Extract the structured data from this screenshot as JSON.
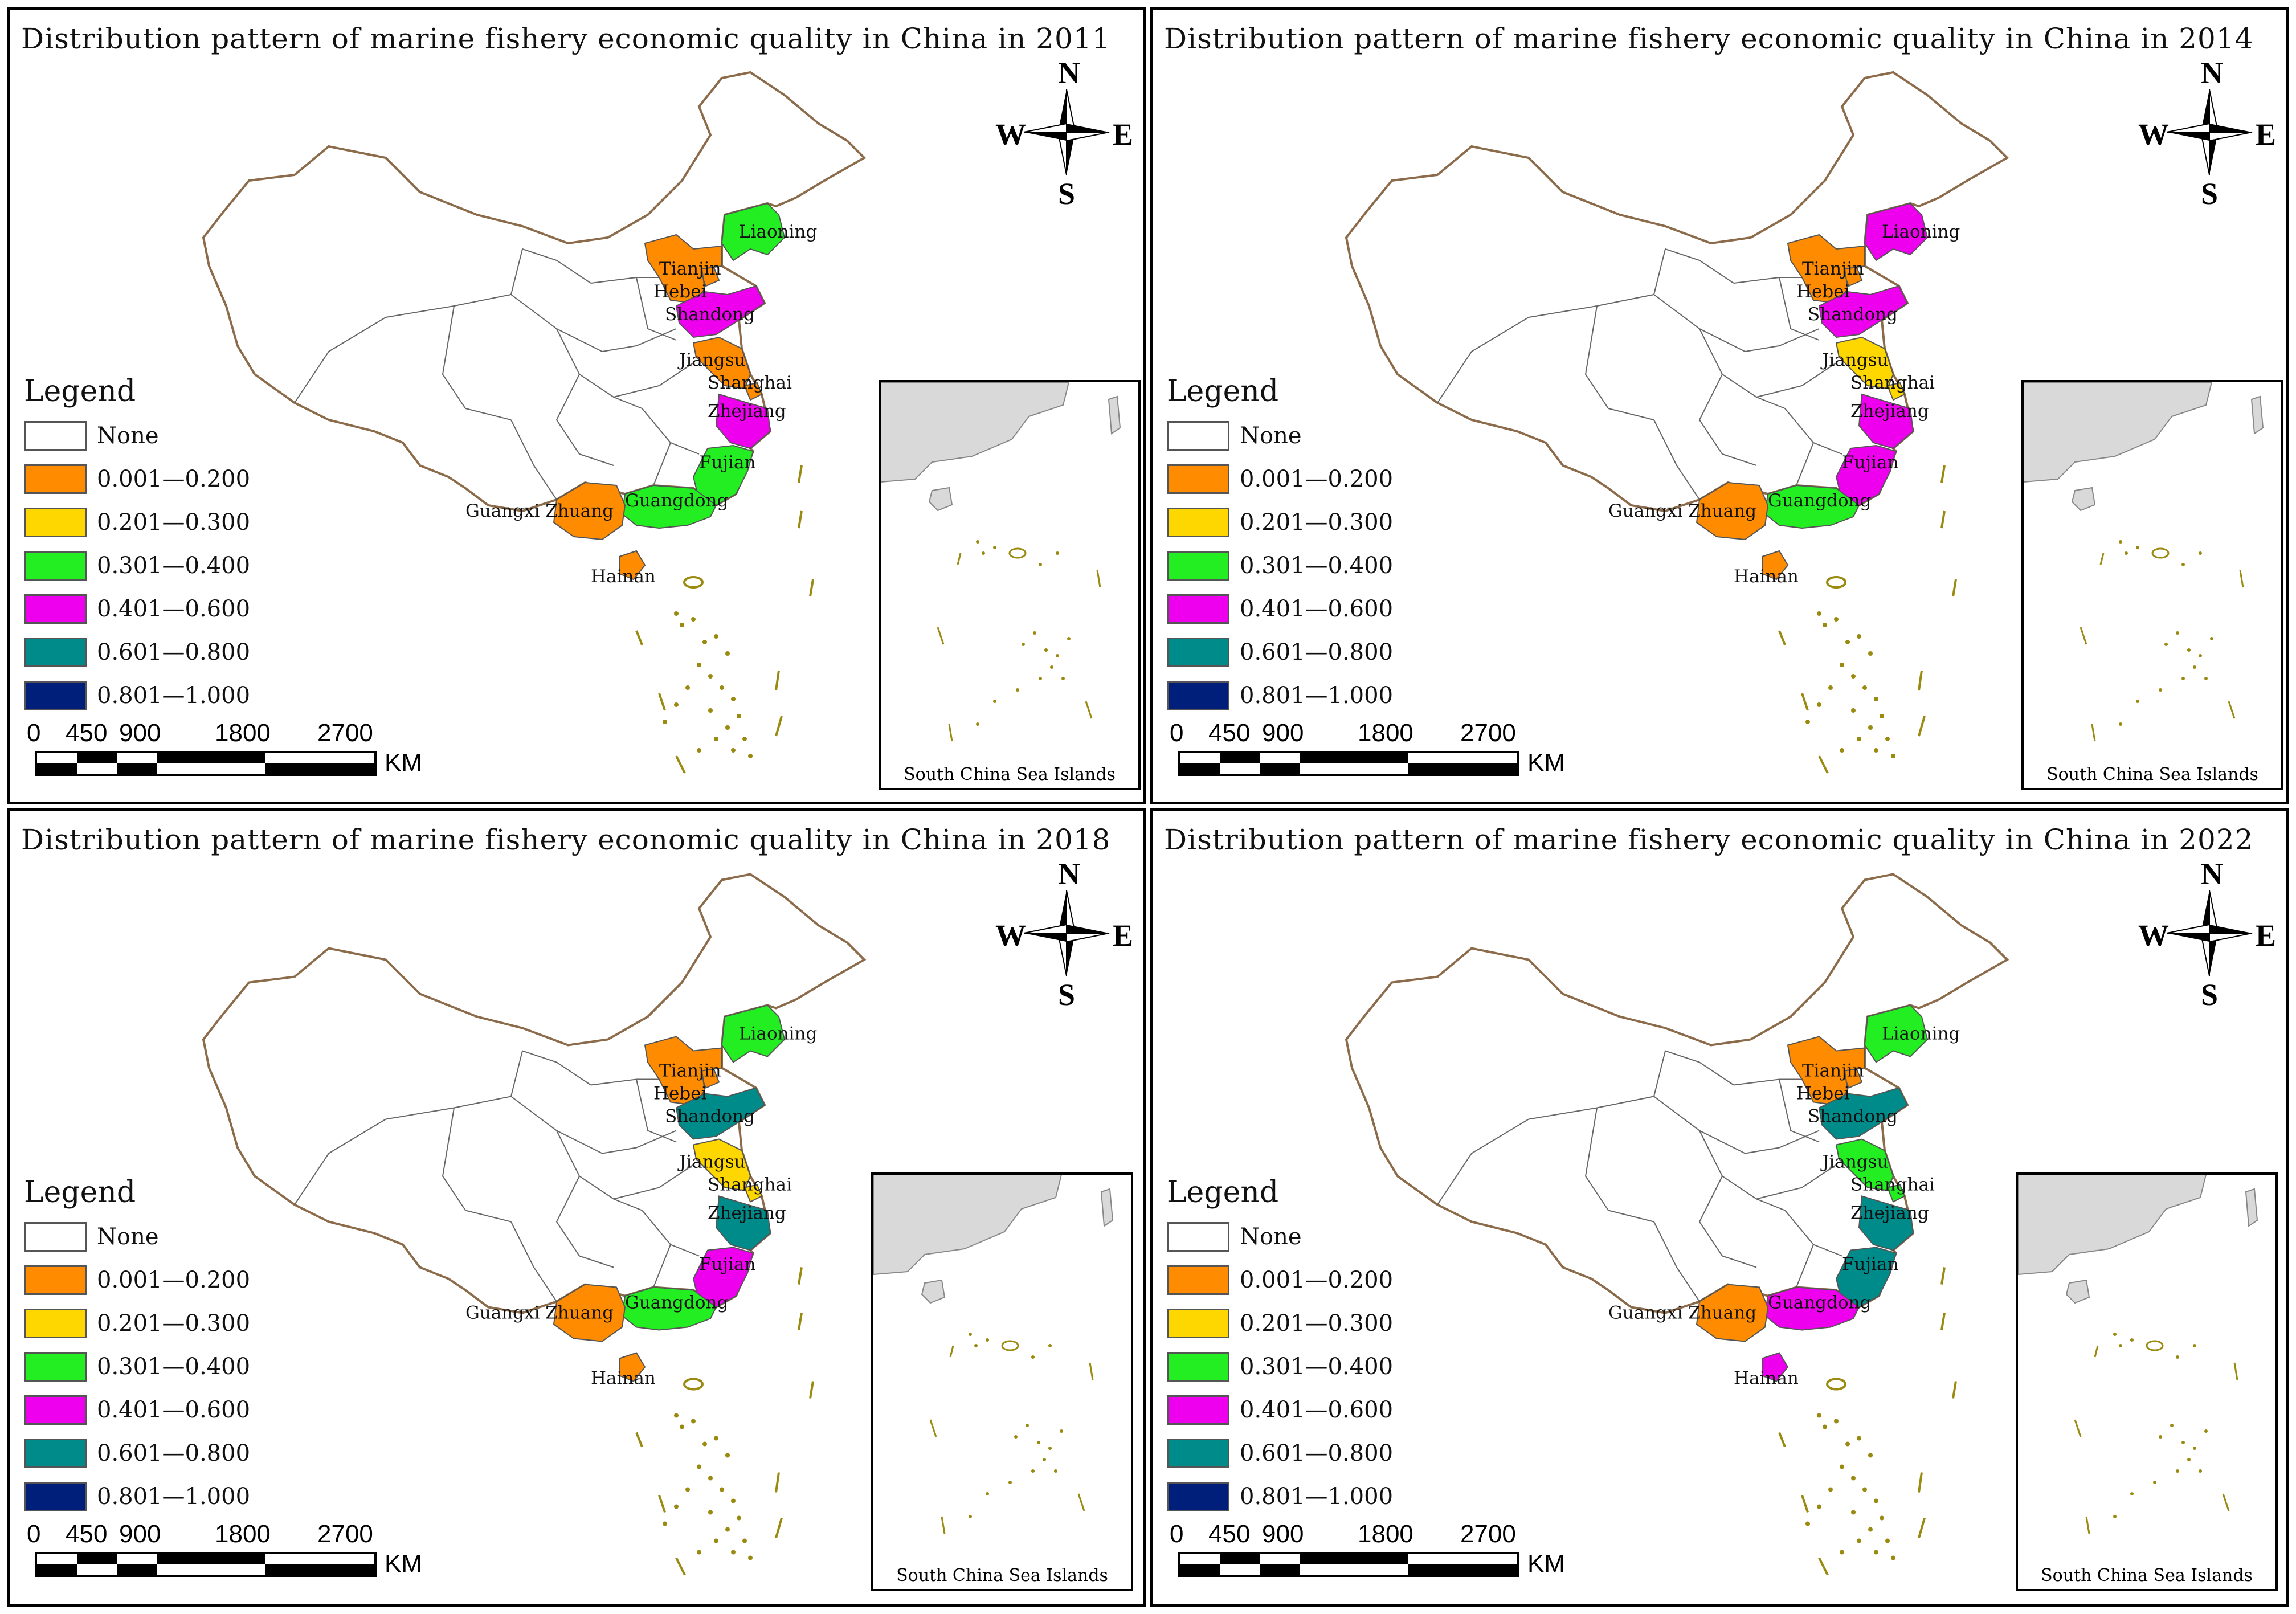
{
  "panels": [
    {
      "title": "Distribution pattern of marine fishery economic quality in China in 2011",
      "year": "2011",
      "province_classes": {
        "Liaoning": 3,
        "Tianjin": 1,
        "Hebei": 1,
        "Shandong": 4,
        "Jiangsu": 1,
        "Shanghai": 1,
        "Zhejiang": 4,
        "Fujian": 3,
        "Guangdong": 3,
        "Guangxi Zhuang": 1,
        "Hainan": 1
      }
    },
    {
      "title": "Distribution pattern of marine fishery economic quality in China in 2014",
      "year": "2014",
      "province_classes": {
        "Liaoning": 4,
        "Tianjin": 1,
        "Hebei": 1,
        "Shandong": 4,
        "Jiangsu": 2,
        "Shanghai": 2,
        "Zhejiang": 4,
        "Fujian": 4,
        "Guangdong": 3,
        "Guangxi Zhuang": 1,
        "Hainan": 1
      }
    },
    {
      "title": "Distribution pattern of marine fishery economic quality in China in 2018",
      "year": "2018",
      "province_classes": {
        "Liaoning": 3,
        "Tianjin": 1,
        "Hebei": 1,
        "Shandong": 5,
        "Jiangsu": 2,
        "Shanghai": 2,
        "Zhejiang": 5,
        "Fujian": 4,
        "Guangdong": 3,
        "Guangxi Zhuang": 1,
        "Hainan": 1
      }
    },
    {
      "title": "Distribution pattern of marine fishery economic quality in China in 2022",
      "year": "2022",
      "province_classes": {
        "Liaoning": 3,
        "Tianjin": 1,
        "Hebei": 1,
        "Shandong": 5,
        "Jiangsu": 3,
        "Shanghai": 3,
        "Zhejiang": 5,
        "Fujian": 5,
        "Guangdong": 4,
        "Guangxi Zhuang": 1,
        "Hainan": 4
      }
    }
  ],
  "legend": {
    "title": "Legend",
    "classes": [
      {
        "label": "None",
        "color": "#ffffff"
      },
      {
        "label": "0.001—0.200",
        "color": "#ff8c00"
      },
      {
        "label": "0.201—0.300",
        "color": "#ffd700"
      },
      {
        "label": "0.301—0.400",
        "color": "#22ee22"
      },
      {
        "label": "0.401—0.600",
        "color": "#ee00ee"
      },
      {
        "label": "0.601—0.800",
        "color": "#008b8b"
      },
      {
        "label": "0.801—1.000",
        "color": "#001f7a"
      }
    ]
  },
  "compass": {
    "n": "N",
    "s": "S",
    "e": "E",
    "w": "W"
  },
  "scale_bar": {
    "ticks": [
      "0",
      "450",
      "900",
      "1800",
      "2700"
    ],
    "unit": "KM"
  },
  "inset_caption": "South China Sea Islands",
  "colors": {
    "border": "#8b6b4a",
    "islands": "#9a8a10",
    "inset_land": "#d9d9d9"
  }
}
